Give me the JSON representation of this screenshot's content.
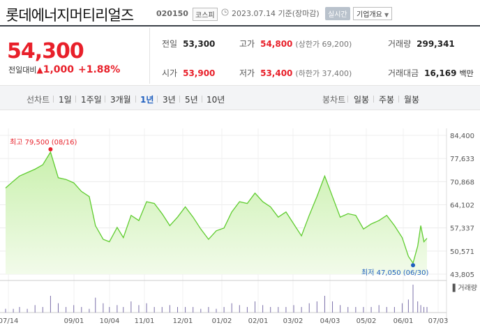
{
  "header": {
    "title": "롯데에너지머티리얼즈",
    "code": "020150",
    "market": "코스피",
    "date_text": "2023.07.14  기준(장마감)",
    "realtime_label": "실시간",
    "overview_label": "기업개요"
  },
  "price": {
    "current": "54,300",
    "change_label": "전일대비",
    "change_value": "1,000",
    "change_pct": "+1.88%"
  },
  "stats": {
    "prev_close_label": "전일",
    "prev_close": "53,300",
    "high_label": "고가",
    "high": "54,800",
    "upper_limit": "(상한가 69,200)",
    "volume_label": "거래량",
    "volume": "299,341",
    "open_label": "시가",
    "open": "53,900",
    "low_label": "저가",
    "low": "53,400",
    "lower_limit": "(하한가 37,400)",
    "trade_value_label": "거래대금",
    "trade_value": "16,169",
    "trade_value_unit": "백만"
  },
  "toolbar": {
    "line_chart_label": "선차트",
    "ranges": [
      "1일",
      "1주일",
      "3개월",
      "1년",
      "3년",
      "5년",
      "10년"
    ],
    "active_range": "1년",
    "candle_chart_label": "봉차트",
    "candles": [
      "일봉",
      "주봉",
      "월봉"
    ]
  },
  "chart_data": {
    "type": "area",
    "y_ticks": [
      "84,400",
      "77,633",
      "70,868",
      "64,102",
      "57,337",
      "50,571",
      "43,805"
    ],
    "ylim": [
      43805,
      84400
    ],
    "x_ticks": [
      "07/14",
      "09/01",
      "10/04",
      "11/01",
      "12/01",
      "01/02",
      "02/01",
      "03/02",
      "04/03",
      "05/02",
      "06/01",
      "07/03"
    ],
    "x": [
      0,
      5,
      9,
      14,
      19,
      24,
      29,
      34,
      39,
      44,
      49,
      54,
      58,
      63,
      67,
      72,
      76,
      81,
      86,
      91,
      96,
      101,
      106,
      111,
      116,
      121,
      126,
      131,
      136,
      141,
      146,
      151,
      156,
      161,
      166,
      171,
      176,
      181,
      186,
      191,
      196,
      201,
      206,
      211,
      216,
      221,
      226,
      231,
      236,
      241,
      246
    ],
    "values": [
      69000,
      71000,
      72500,
      73500,
      74500,
      75800,
      79500,
      72000,
      71500,
      70500,
      68000,
      66500,
      58000,
      54000,
      53300,
      57500,
      54500,
      61000,
      59500,
      65000,
      64500,
      61500,
      58000,
      60500,
      63500,
      60500,
      57000,
      54000,
      56500,
      57300,
      62000,
      65000,
      64500,
      67500,
      65000,
      63500,
      60500,
      62000,
      58500,
      55000,
      61000,
      66500,
      72500,
      66500,
      60500,
      61500,
      61000,
      57000,
      58500,
      59500,
      61000
    ],
    "x_values": [
      0,
      5,
      9,
      14,
      19,
      24,
      29,
      34,
      39,
      44,
      49,
      54,
      58,
      63,
      67,
      72,
      76,
      81,
      86,
      91,
      96,
      101,
      106,
      111,
      116,
      121,
      126,
      131,
      136,
      141,
      146,
      151,
      156,
      161,
      166,
      171,
      176,
      181,
      186,
      191,
      196,
      201,
      206,
      211,
      216,
      221,
      226,
      231,
      236,
      241,
      246,
      251,
      256,
      260,
      263,
      266,
      268,
      270,
      272
    ],
    "full_values": [
      69000,
      71000,
      72500,
      73500,
      74500,
      75800,
      79500,
      72000,
      71500,
      70500,
      68000,
      66500,
      58000,
      54000,
      53300,
      57500,
      54500,
      61000,
      59500,
      65000,
      64500,
      61500,
      58000,
      60500,
      63500,
      60500,
      57000,
      54000,
      56500,
      57300,
      62000,
      65000,
      64500,
      67500,
      65000,
      63500,
      60500,
      62000,
      58500,
      55000,
      61000,
      66500,
      72500,
      66500,
      60500,
      61500,
      61000,
      57000,
      58500,
      59500,
      61000,
      58000,
      54500,
      49000,
      47050,
      52000,
      58000,
      53300,
      54300
    ],
    "max_annotation": "최고 79,500 (08/16)",
    "min_annotation": "최저 47,050 (06/30)",
    "max_value": 79500,
    "min_value": 47050,
    "volume_label": "거래량",
    "volume": [
      2,
      2,
      3,
      2,
      4,
      3,
      9,
      5,
      3,
      4,
      3,
      2,
      8,
      5,
      3,
      4,
      3,
      6,
      4,
      5,
      3,
      3,
      4,
      3,
      3,
      3,
      2,
      3,
      2,
      3,
      5,
      4,
      3,
      6,
      4,
      3,
      3,
      3,
      4,
      3,
      5,
      6,
      9,
      6,
      4,
      3,
      3,
      3,
      3,
      4,
      3,
      3,
      5,
      7,
      15,
      6,
      4,
      3,
      3
    ],
    "grid": true,
    "line_color": "#5fcc2f",
    "fill_color": "#d8f5c4"
  }
}
